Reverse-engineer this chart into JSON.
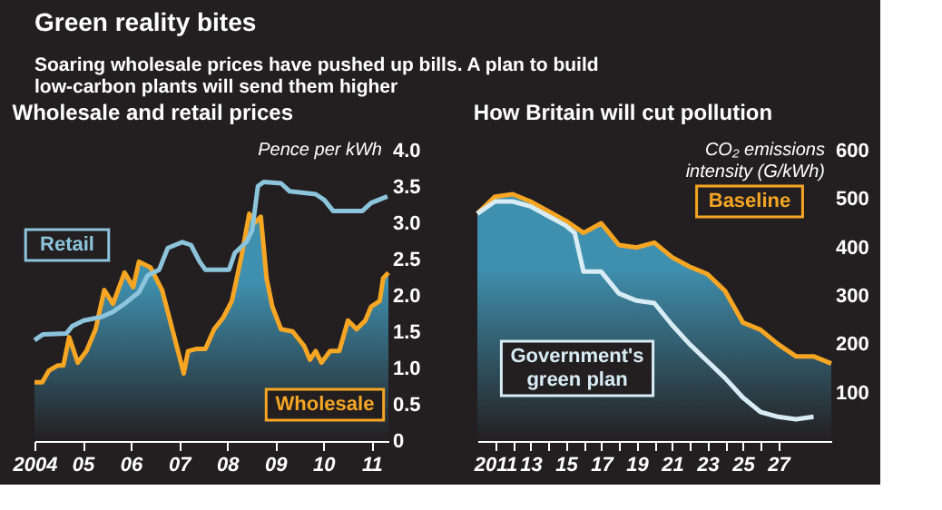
{
  "chart_data": [
    {
      "type": "other",
      "title": "Green reality bites",
      "subtitle": "Soaring wholesale prices have pushed up bills. A plan to build low-carbon plants will send them higher"
    },
    {
      "type": "line",
      "title": "Wholesale and retail prices",
      "ylabel": "Pence per kWh",
      "xlim": [
        2004,
        2011.35
      ],
      "ylim": [
        0,
        4
      ],
      "xticks": [
        2004,
        {
          "value": 2005,
          "label": "05"
        },
        {
          "value": 2006,
          "label": "06"
        },
        {
          "value": 2007,
          "label": "07"
        },
        {
          "value": 2008,
          "label": "08"
        },
        {
          "value": 2009,
          "label": "09"
        },
        {
          "value": 2010,
          "label": "10"
        },
        {
          "value": 2011,
          "label": "11"
        }
      ],
      "yticks": [
        {
          "value": 0,
          "label": "0"
        },
        0.5,
        {
          "value": 1,
          "label": "1.0"
        },
        1.5,
        {
          "value": 2,
          "label": "2.0"
        },
        2.5,
        {
          "value": 3,
          "label": "3.0"
        },
        3.5,
        {
          "value": 4,
          "label": "4.0"
        }
      ],
      "series": [
        {
          "name": "Wholesale",
          "type": "area",
          "color": "#f6a623",
          "x": [
            2004.0,
            2004.16,
            2004.3,
            2004.48,
            2004.6,
            2004.72,
            2004.9,
            2005.08,
            2005.27,
            2005.45,
            2005.63,
            2005.87,
            2006.05,
            2006.17,
            2006.41,
            2006.65,
            2006.89,
            2007.1,
            2007.19,
            2007.37,
            2007.55,
            2007.73,
            2007.92,
            2008.1,
            2008.3,
            2008.46,
            2008.58,
            2008.7,
            2008.82,
            2008.94,
            2009.12,
            2009.36,
            2009.6,
            2009.72,
            2009.84,
            2009.96,
            2010.14,
            2010.33,
            2010.51,
            2010.69,
            2010.87,
            2010.99,
            2011.17,
            2011.24,
            2011.35
          ],
          "values": [
            0.81,
            0.81,
            0.97,
            1.04,
            1.04,
            1.43,
            1.08,
            1.24,
            1.54,
            2.08,
            1.89,
            2.32,
            2.12,
            2.47,
            2.39,
            2.08,
            1.47,
            0.93,
            1.24,
            1.27,
            1.27,
            1.54,
            1.7,
            1.93,
            2.55,
            3.13,
            3.01,
            3.09,
            2.24,
            1.85,
            1.54,
            1.51,
            1.31,
            1.12,
            1.24,
            1.08,
            1.24,
            1.24,
            1.66,
            1.54,
            1.66,
            1.85,
            1.93,
            2.24,
            2.32
          ]
        },
        {
          "name": "Retail",
          "color": "#8cc4dc",
          "x": [
            2004.0,
            2004.18,
            2004.66,
            2004.78,
            2005.02,
            2005.39,
            2005.63,
            2005.87,
            2006.17,
            2006.35,
            2006.59,
            2006.77,
            2007.07,
            2007.25,
            2007.43,
            2007.55,
            2008.04,
            2008.16,
            2008.4,
            2008.52,
            2008.64,
            2008.76,
            2009.12,
            2009.3,
            2009.84,
            2010.02,
            2010.2,
            2010.81,
            2010.99,
            2011.33
          ],
          "values": [
            1.39,
            1.47,
            1.48,
            1.58,
            1.66,
            1.71,
            1.78,
            1.89,
            2.05,
            2.28,
            2.36,
            2.66,
            2.74,
            2.7,
            2.47,
            2.36,
            2.36,
            2.59,
            2.74,
            2.9,
            3.51,
            3.57,
            3.55,
            3.44,
            3.4,
            3.32,
            3.17,
            3.17,
            3.28,
            3.37
          ]
        }
      ]
    },
    {
      "type": "line",
      "title": "How Britain will cut pollution",
      "ylabel": "CO₂ emissions intensity (G/kWh)",
      "xlim": [
        2010,
        2030
      ],
      "ylim": [
        0,
        600
      ],
      "xticks": [
        {
          "value": 2011,
          "label": "2011"
        },
        {
          "value": 2012,
          "label": null
        },
        {
          "value": 2013,
          "label": "13"
        },
        {
          "value": 2014,
          "label": null
        },
        {
          "value": 2015,
          "label": "15"
        },
        {
          "value": 2016,
          "label": null
        },
        {
          "value": 2017,
          "label": "17"
        },
        {
          "value": 2018,
          "label": null
        },
        {
          "value": 2019,
          "label": "19"
        },
        {
          "value": 2020,
          "label": null
        },
        {
          "value": 2021,
          "label": "21"
        },
        {
          "value": 2022,
          "label": null
        },
        {
          "value": 2023,
          "label": "23"
        },
        {
          "value": 2024,
          "label": null
        },
        {
          "value": 2025,
          "label": "25"
        },
        {
          "value": 2026,
          "label": null
        },
        {
          "value": 2027,
          "label": "27"
        }
      ],
      "yticks": [
        100,
        200,
        300,
        400,
        500,
        600
      ],
      "series": [
        {
          "name": "Baseline",
          "type": "area",
          "color": "#f6a623",
          "x": [
            2010,
            2011,
            2012,
            2013,
            2014,
            2015,
            2016,
            2017,
            2018,
            2019,
            2020,
            2021,
            2022,
            2023,
            2024,
            2025,
            2026,
            2027,
            2028,
            2029,
            2030
          ],
          "values": [
            470,
            505,
            510,
            495,
            475,
            455,
            430,
            450,
            405,
            400,
            410,
            380,
            360,
            345,
            310,
            245,
            230,
            200,
            175,
            175,
            160
          ]
        },
        {
          "name": "Government's green plan",
          "color": "#d8ecf5",
          "x": [
            2010,
            2011,
            2012,
            2013,
            2014,
            2015,
            2015.5,
            2016,
            2017,
            2018,
            2019,
            2020,
            2021,
            2022,
            2023,
            2024,
            2025,
            2026,
            2027,
            2028,
            2029
          ],
          "values": [
            470,
            495,
            495,
            485,
            465,
            445,
            430,
            350,
            350,
            305,
            290,
            285,
            240,
            200,
            165,
            130,
            90,
            60,
            50,
            45,
            50
          ]
        }
      ]
    }
  ]
}
